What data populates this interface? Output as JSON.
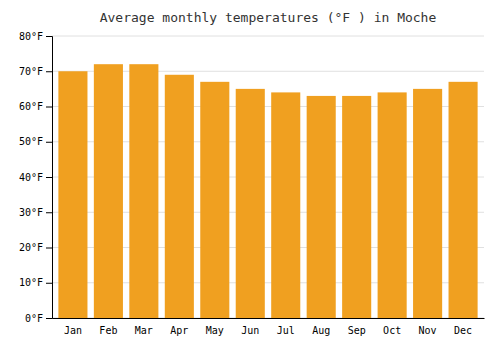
{
  "chart_data": {
    "type": "bar",
    "title": "Average monthly temperatures (°F ) in Moche",
    "categories": [
      "Jan",
      "Feb",
      "Mar",
      "Apr",
      "May",
      "Jun",
      "Jul",
      "Aug",
      "Sep",
      "Oct",
      "Nov",
      "Dec"
    ],
    "values": [
      70,
      72,
      72,
      69,
      67,
      65,
      64,
      63,
      63,
      64,
      65,
      67
    ],
    "color": "#F0A020",
    "ylim": [
      0,
      80
    ],
    "yticks": [
      {
        "value": 0,
        "label": "0°F"
      },
      {
        "value": 10,
        "label": "10°F"
      },
      {
        "value": 20,
        "label": "20°F"
      },
      {
        "value": 30,
        "label": "30°F"
      },
      {
        "value": 40,
        "label": "40°F"
      },
      {
        "value": 50,
        "label": "50°F"
      },
      {
        "value": 60,
        "label": "60°F"
      },
      {
        "value": 70,
        "label": "70°F"
      },
      {
        "value": 80,
        "label": "80°F"
      }
    ],
    "grid": true
  }
}
